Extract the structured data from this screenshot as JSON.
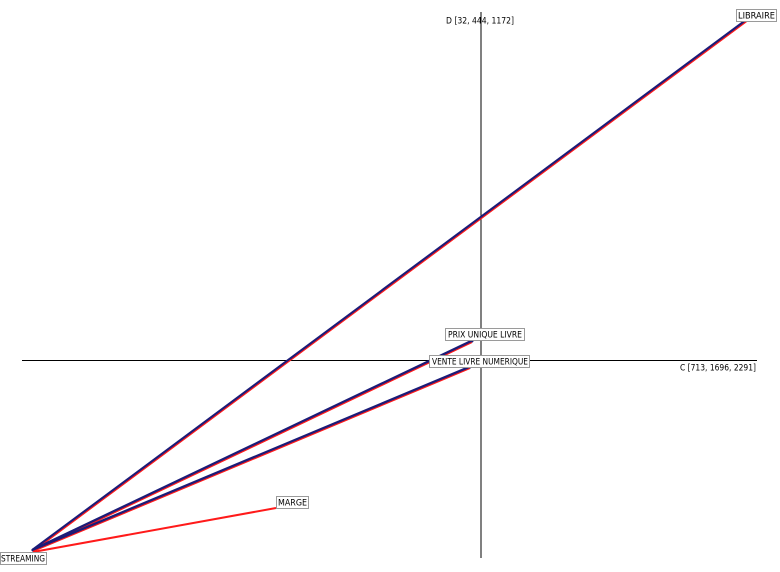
{
  "axes": {
    "vertical": {
      "label": "D [32, 444, 1172]"
    },
    "horizontal": {
      "label": "C [713, 1696, 2291]"
    }
  },
  "nodes": [
    {
      "label": "LIBRAIRE"
    },
    {
      "label": "PRIX UNIQUE LIVRE"
    },
    {
      "label": "VENTE LIVRE NUMERIQUE"
    },
    {
      "label": "MARGE"
    },
    {
      "label": "STREAMING"
    }
  ]
}
